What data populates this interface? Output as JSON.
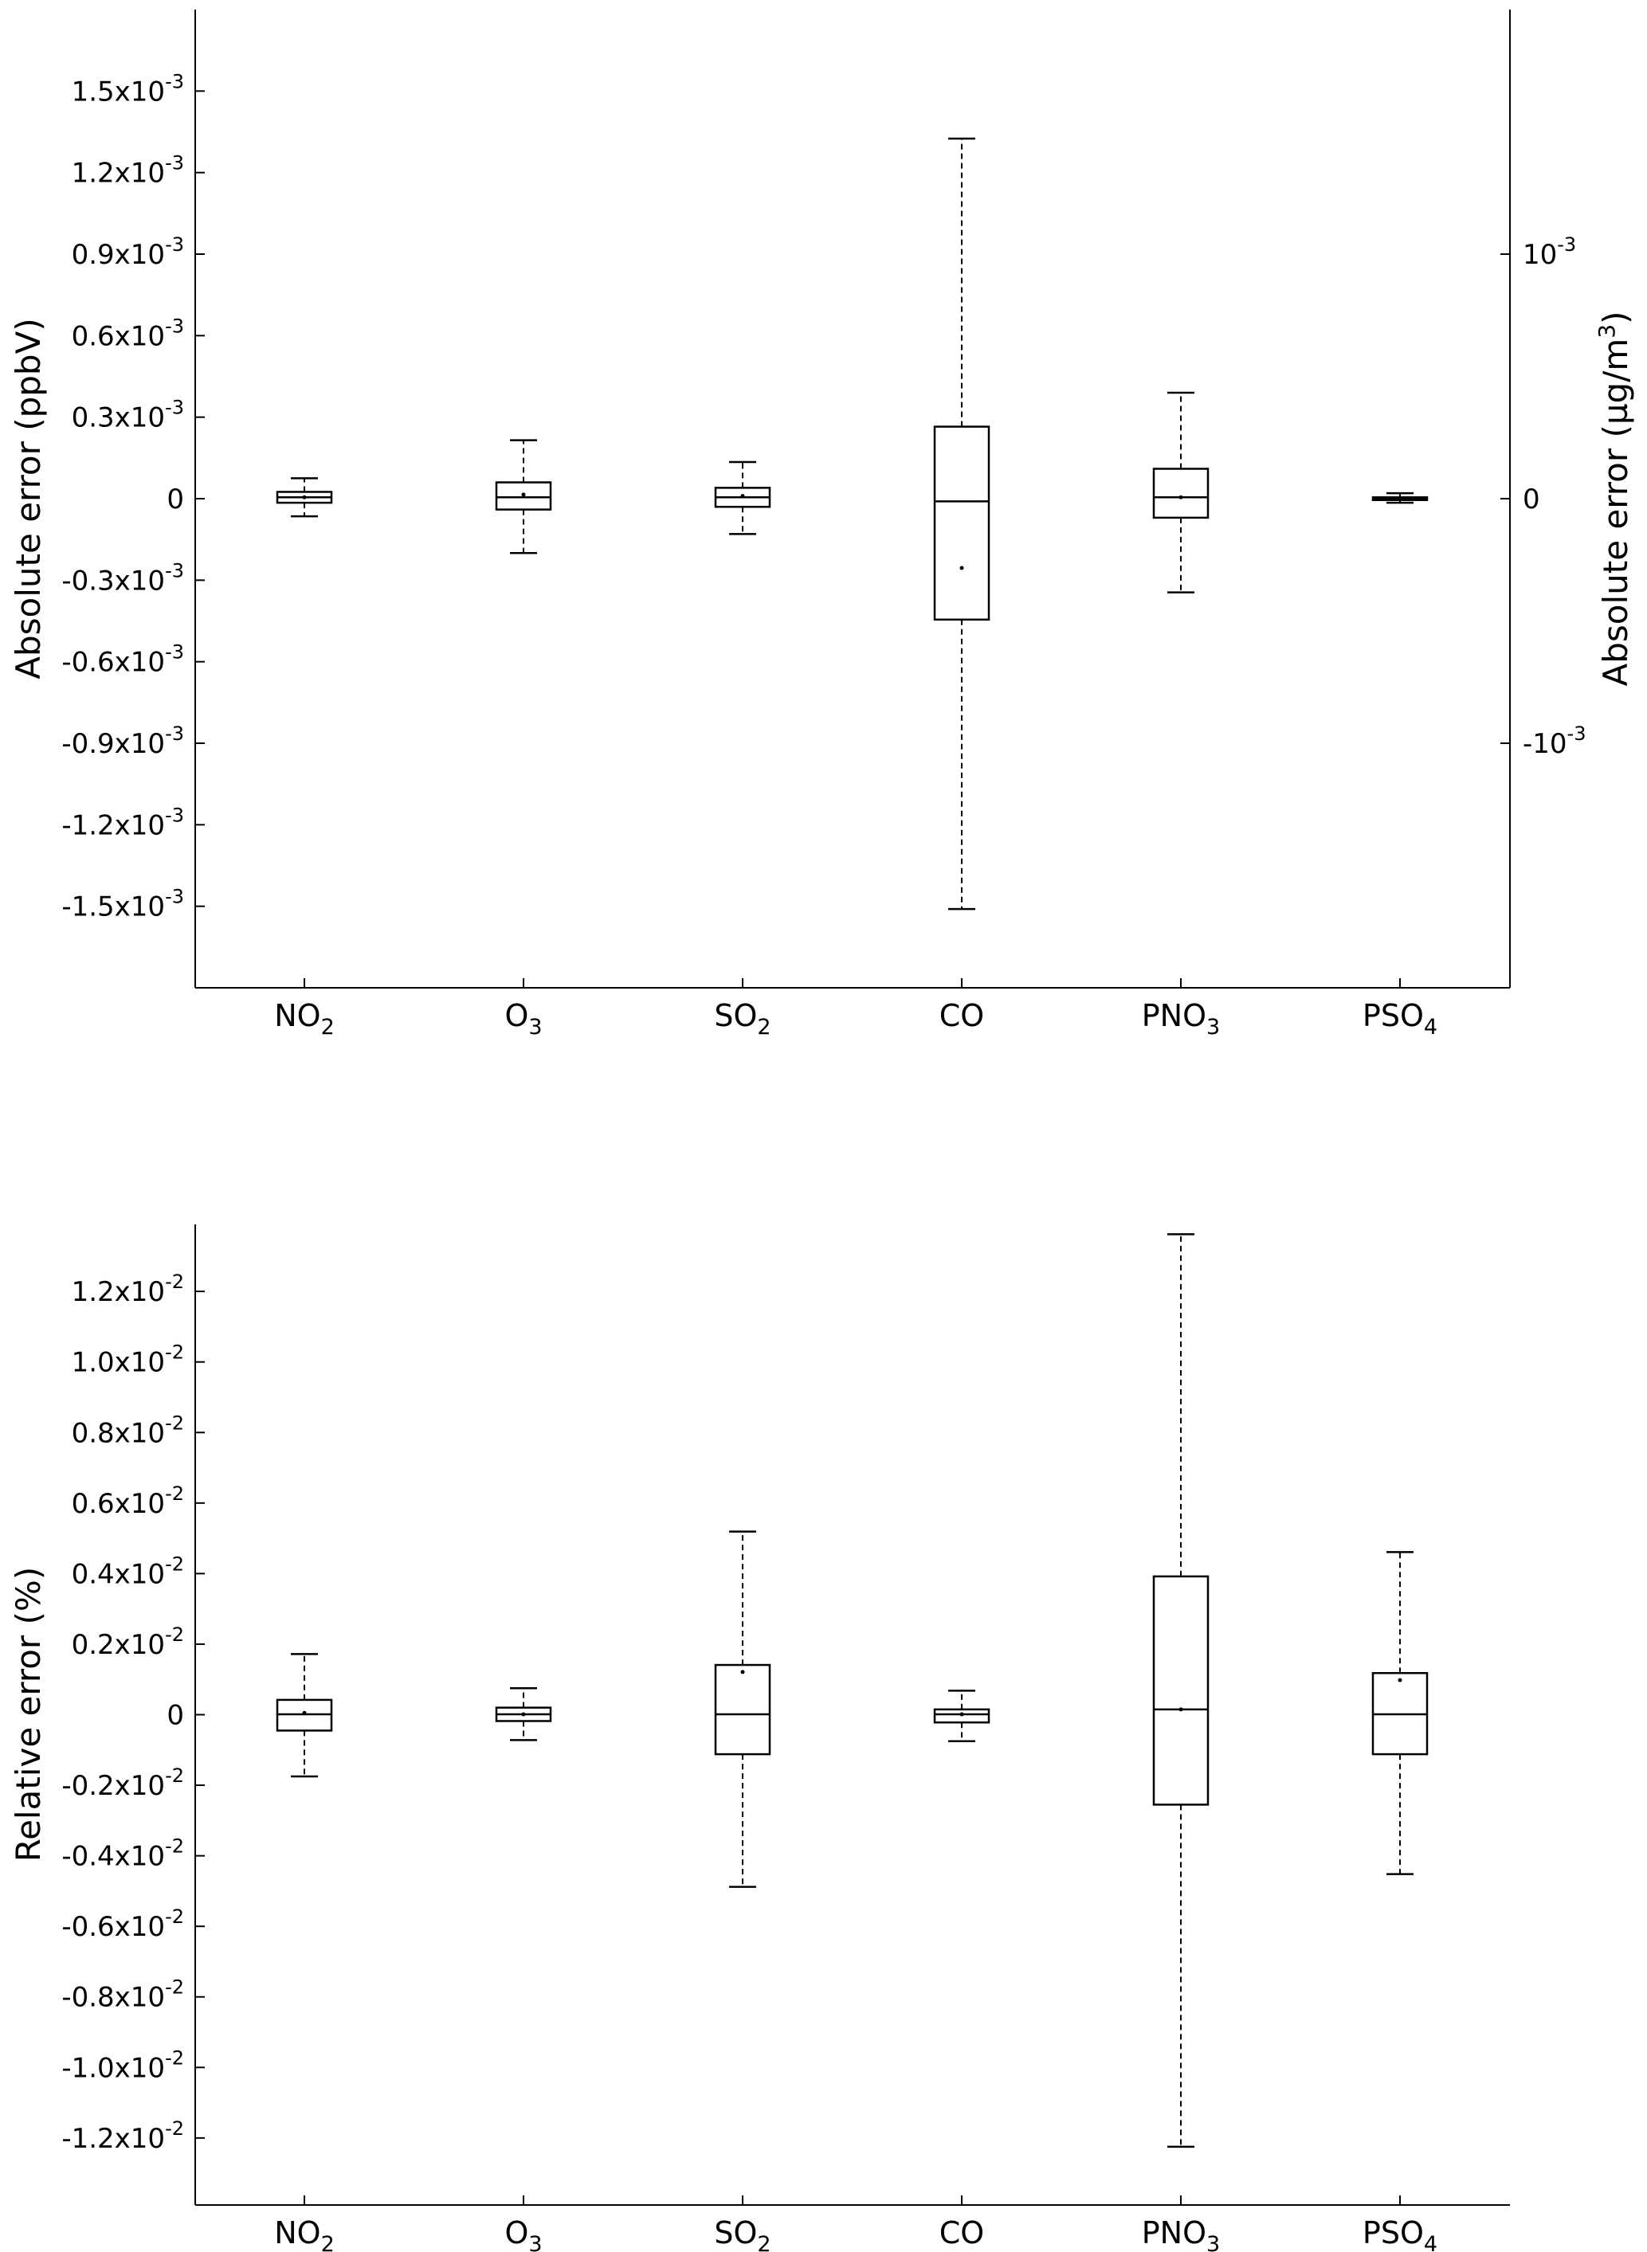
{
  "chart_data": [
    {
      "type": "box",
      "categories": [
        {
          "base": "NO",
          "sub": "2"
        },
        {
          "base": "O",
          "sub": "3"
        },
        {
          "base": "SO",
          "sub": "2"
        },
        {
          "base": "CO",
          "sub": ""
        },
        {
          "base": "PNO",
          "sub": "3"
        },
        {
          "base": "PSO",
          "sub": "4"
        }
      ],
      "ylabel": "Absolute error (ppbV)",
      "y2label": {
        "main": "Absolute error (µg/m",
        "sup": "3",
        "close": ")"
      },
      "ylim": [
        -0.0018,
        0.0018
      ],
      "yticks": [
        {
          "value": 0.0015,
          "mant": "1.5x10",
          "exp": "-3"
        },
        {
          "value": 0.0012,
          "mant": "1.2x10",
          "exp": "-3"
        },
        {
          "value": 0.0009,
          "mant": "0.9x10",
          "exp": "-3"
        },
        {
          "value": 0.0006,
          "mant": "0.6x10",
          "exp": "-3"
        },
        {
          "value": 0.0003,
          "mant": "0.3x10",
          "exp": "-3"
        },
        {
          "value": 0,
          "mant": "0",
          "exp": ""
        },
        {
          "value": -0.0003,
          "mant": "-0.3x10",
          "exp": "-3"
        },
        {
          "value": -0.0006,
          "mant": "-0.6x10",
          "exp": "-3"
        },
        {
          "value": -0.0009,
          "mant": "-0.9x10",
          "exp": "-3"
        },
        {
          "value": -0.0012,
          "mant": "-1.2x10",
          "exp": "-3"
        },
        {
          "value": -0.0015,
          "mant": "-1.5x10",
          "exp": "-3"
        }
      ],
      "y2lim": [
        -0.002,
        0.002
      ],
      "y2ticks": [
        {
          "value": 0.001,
          "mant": "10",
          "exp": "-3"
        },
        {
          "value": 0,
          "mant": "0",
          "exp": ""
        },
        {
          "value": -0.001,
          "mant": "-10",
          "exp": "-3"
        }
      ],
      "boxes": [
        {
          "whislo": -6.5e-05,
          "q1": -1.5e-05,
          "med": 5e-06,
          "q3": 2.5e-05,
          "whishi": 7.5e-05,
          "mean": 5e-06
        },
        {
          "whislo": -0.0002,
          "q1": -4e-05,
          "med": 5e-06,
          "q3": 6e-05,
          "whishi": 0.000215,
          "mean": 1.5e-05
        },
        {
          "whislo": -0.00013,
          "q1": -3e-05,
          "med": 5e-06,
          "q3": 4e-05,
          "whishi": 0.000135,
          "mean": 1e-05
        },
        {
          "whislo": -0.00151,
          "q1": -0.000445,
          "med": -1e-05,
          "q3": 0.000265,
          "whishi": 0.001325,
          "mean": -0.000255
        },
        {
          "whislo": -0.000345,
          "q1": -7e-05,
          "med": 5e-06,
          "q3": 0.00011,
          "whishi": 0.00039,
          "mean": 5e-06
        },
        {
          "whislo": -1.5e-05,
          "q1": -5e-06,
          "med": 0.0,
          "q3": 5e-06,
          "whishi": 2e-05,
          "mean": 0.0
        }
      ],
      "grid": false
    },
    {
      "type": "box",
      "categories": [
        {
          "base": "NO",
          "sub": "2"
        },
        {
          "base": "O",
          "sub": "3"
        },
        {
          "base": "SO",
          "sub": "2"
        },
        {
          "base": "CO",
          "sub": ""
        },
        {
          "base": "PNO",
          "sub": "3"
        },
        {
          "base": "PSO",
          "sub": "4"
        }
      ],
      "ylabel": "Relative error (%)",
      "ylim": [
        -0.0139,
        0.0139
      ],
      "yticks": [
        {
          "value": 0.012,
          "mant": "1.2x10",
          "exp": "-2"
        },
        {
          "value": 0.01,
          "mant": "1.0x10",
          "exp": "-2"
        },
        {
          "value": 0.008,
          "mant": "0.8x10",
          "exp": "-2"
        },
        {
          "value": 0.006,
          "mant": "0.6x10",
          "exp": "-2"
        },
        {
          "value": 0.004,
          "mant": "0.4x10",
          "exp": "-2"
        },
        {
          "value": 0.002,
          "mant": "0.2x10",
          "exp": "-2"
        },
        {
          "value": 0,
          "mant": "0",
          "exp": ""
        },
        {
          "value": -0.002,
          "mant": "-0.2x10",
          "exp": "-2"
        },
        {
          "value": -0.004,
          "mant": "-0.4x10",
          "exp": "-2"
        },
        {
          "value": -0.006,
          "mant": "-0.6x10",
          "exp": "-2"
        },
        {
          "value": -0.008,
          "mant": "-0.8x10",
          "exp": "-2"
        },
        {
          "value": -0.01,
          "mant": "-1.0x10",
          "exp": "-2"
        },
        {
          "value": -0.012,
          "mant": "-1.2x10",
          "exp": "-2"
        }
      ],
      "boxes": [
        {
          "whislo": -0.00175,
          "q1": -0.00045,
          "med": 1e-05,
          "q3": 0.00042,
          "whishi": 0.00172,
          "mean": 5e-05
        },
        {
          "whislo": -0.00072,
          "q1": -0.00018,
          "med": 1e-05,
          "q3": 0.0002,
          "whishi": 0.00075,
          "mean": 1e-05
        },
        {
          "whislo": -0.00488,
          "q1": -0.00112,
          "med": 1e-05,
          "q3": 0.00141,
          "whishi": 0.00519,
          "mean": 0.00121
        },
        {
          "whislo": -0.00075,
          "q1": -0.00022,
          "med": 1e-05,
          "q3": 0.00015,
          "whishi": 0.00068,
          "mean": 1e-05
        },
        {
          "whislo": -0.01225,
          "q1": -0.00255,
          "med": 0.00015,
          "q3": 0.00392,
          "whishi": 0.01362,
          "mean": 0.00015
        },
        {
          "whislo": -0.00452,
          "q1": -0.00112,
          "med": 1e-05,
          "q3": 0.00118,
          "whishi": 0.00461,
          "mean": 0.00098
        }
      ],
      "grid": false
    }
  ]
}
